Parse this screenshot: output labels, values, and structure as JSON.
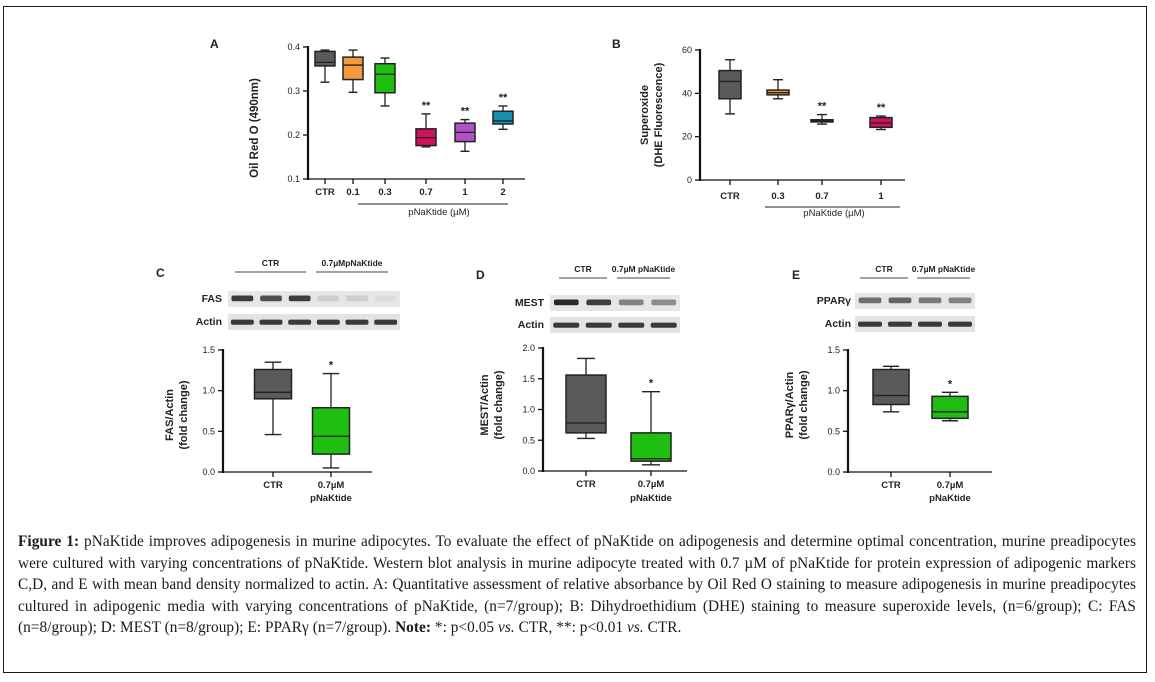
{
  "figure": {
    "caption": {
      "label": "Figure 1:",
      "text_1": " pNaKtide improves adipogenesis in murine adipocytes. To evaluate the effect of pNaKtide on adipogenesis and determine optimal concentration, murine preadipocytes were cultured with varying concentrations of pNaKtide. Western blot analysis in murine adipocyte treated with 0.7 µM of pNaKtide for protein expression of adipogenic markers C,D, and E with mean band density normalized to actin. A: Quantitative assessment of relative absorbance by Oil Red O staining to measure adipogenesis in murine preadipocytes cultured in adipogenic media with varying concentrations of pNaKtide, (n=7/group); B: Dihydroethidium (DHE) staining to measure superoxide levels, (n=6/group); C: FAS (n=8/group); D: MEST (n=8/group); E: PPARγ (n=7/group). ",
      "note_label": "Note:",
      "text_2a": " *: p<0.05 ",
      "vs_1": "vs.",
      "text_2b": " CTR, **: p<0.01 ",
      "vs_2": "vs.",
      "text_2c": " CTR."
    }
  },
  "chart_data": [
    {
      "panel": "A",
      "type": "box",
      "ylabel": "Oil Red O (490nm)",
      "xlabel": "pNaKtide (µM)",
      "ylim": [
        0.1,
        0.4
      ],
      "yticks": [
        "0.1",
        "0.2",
        "0.3",
        "0.4"
      ],
      "ytick_values": [
        0.1,
        0.2,
        0.3,
        0.4
      ],
      "categories": [
        "CTR",
        "0.1",
        "0.3",
        "0.7",
        "1",
        "2"
      ],
      "colors": [
        "#5a5a5a",
        "#f59a3c",
        "#1fbf12",
        "#d1105e",
        "#b052c8",
        "#1592b0"
      ],
      "boxes": [
        {
          "min": 0.32,
          "q1": 0.357,
          "median": 0.365,
          "q3": 0.39,
          "max": 0.393,
          "sig": ""
        },
        {
          "min": 0.297,
          "q1": 0.326,
          "median": 0.359,
          "q3": 0.377,
          "max": 0.393,
          "sig": ""
        },
        {
          "min": 0.266,
          "q1": 0.296,
          "median": 0.338,
          "q3": 0.362,
          "max": 0.375,
          "sig": ""
        },
        {
          "min": 0.173,
          "q1": 0.176,
          "median": 0.194,
          "q3": 0.214,
          "max": 0.248,
          "sig": "**"
        },
        {
          "min": 0.163,
          "q1": 0.185,
          "median": 0.206,
          "q3": 0.227,
          "max": 0.235,
          "sig": "**"
        },
        {
          "min": 0.213,
          "q1": 0.225,
          "median": 0.232,
          "q3": 0.254,
          "max": 0.266,
          "sig": "**"
        }
      ],
      "bracket_from": 1
    },
    {
      "panel": "B",
      "type": "box",
      "ylabel": "Superoxide",
      "ylabel2": "(DHE Fluorescence)",
      "xlabel": "pNaKtide (µM)",
      "ylim": [
        0,
        60
      ],
      "yticks": [
        "0",
        "20",
        "40",
        "60"
      ],
      "ytick_values": [
        0,
        20,
        40,
        60
      ],
      "categories": [
        "CTR",
        "0.3",
        "0.7",
        "1"
      ],
      "colors": [
        "#5a5a5a",
        "#f59a3c",
        "#222222",
        "#d1105e"
      ],
      "boxes": [
        {
          "min": 30.5,
          "q1": 37.5,
          "median": 45.5,
          "q3": 50.5,
          "max": 55.5,
          "sig": ""
        },
        {
          "min": 37.5,
          "q1": 39.3,
          "median": 40.3,
          "q3": 41.5,
          "max": 46.3,
          "sig": ""
        },
        {
          "min": 25.8,
          "q1": 26.8,
          "median": 27.3,
          "q3": 27.8,
          "max": 30.2,
          "sig": "**"
        },
        {
          "min": 23.3,
          "q1": 24.3,
          "median": 26.3,
          "q3": 28.8,
          "max": 29.5,
          "sig": "**"
        }
      ],
      "bracket_from": 1
    },
    {
      "panel": "C",
      "type": "box",
      "blot": {
        "protein": "FAS",
        "loading": "Actin",
        "group1": "CTR",
        "group2": "0.7µMpNaKtide",
        "lanes": 6,
        "intensity": [
          0.85,
          0.75,
          0.85,
          0.12,
          0.12,
          0.05
        ]
      },
      "ylabel": "FAS/Actin",
      "ylabel2": "(fold change)",
      "ylim": [
        0,
        1.5
      ],
      "yticks": [
        "0.0",
        "0.5",
        "1.0",
        "1.5"
      ],
      "ytick_values": [
        0,
        0.5,
        1.0,
        1.5
      ],
      "categories": [
        "CTR",
        "0.7µM"
      ],
      "category_sub": [
        "",
        "pNaKtide"
      ],
      "colors": [
        "#5a5a5a",
        "#1fbf12"
      ],
      "boxes": [
        {
          "min": 0.46,
          "q1": 0.9,
          "median": 0.98,
          "q3": 1.26,
          "max": 1.35,
          "sig": ""
        },
        {
          "min": 0.05,
          "q1": 0.22,
          "median": 0.44,
          "q3": 0.79,
          "max": 1.21,
          "sig": "*"
        }
      ]
    },
    {
      "panel": "D",
      "type": "box",
      "blot": {
        "protein": "MEST",
        "loading": "Actin",
        "group1": "CTR",
        "group2": "0.7µM pNaKtide",
        "lanes": 4,
        "intensity": [
          0.95,
          0.85,
          0.5,
          0.45
        ]
      },
      "ylabel": "MEST/Actin",
      "ylabel2": "(fold change)",
      "ylim": [
        0,
        2.0
      ],
      "yticks": [
        "0.0",
        "0.5",
        "1.0",
        "1.5",
        "2.0"
      ],
      "ytick_values": [
        0,
        0.5,
        1.0,
        1.5,
        2.0
      ],
      "categories": [
        "CTR",
        "0.7µM"
      ],
      "category_sub": [
        "",
        "pNaKtide"
      ],
      "colors": [
        "#5a5a5a",
        "#1fbf12"
      ],
      "boxes": [
        {
          "min": 0.53,
          "q1": 0.62,
          "median": 0.78,
          "q3": 1.56,
          "max": 1.83,
          "sig": ""
        },
        {
          "min": 0.1,
          "q1": 0.16,
          "median": 0.2,
          "q3": 0.62,
          "max": 1.29,
          "sig": "*"
        }
      ]
    },
    {
      "panel": "E",
      "type": "box",
      "blot": {
        "protein": "PPARγ",
        "loading": "Actin",
        "group1": "CTR",
        "group2": "0.7µM pNaKtide",
        "lanes": 4,
        "intensity": [
          0.6,
          0.65,
          0.55,
          0.5
        ]
      },
      "ylabel": "PPARγ/Actin",
      "ylabel2": "(fold change)",
      "ylim": [
        0,
        1.5
      ],
      "yticks": [
        "0.0",
        "0.5",
        "1.0",
        "1.5"
      ],
      "ytick_values": [
        0,
        0.5,
        1.0,
        1.5
      ],
      "categories": [
        "CTR",
        "0.7µM"
      ],
      "category_sub": [
        "",
        "pNaKtide"
      ],
      "colors": [
        "#5a5a5a",
        "#1fbf12"
      ],
      "boxes": [
        {
          "min": 0.74,
          "q1": 0.83,
          "median": 0.94,
          "q3": 1.26,
          "max": 1.3,
          "sig": ""
        },
        {
          "min": 0.63,
          "q1": 0.66,
          "median": 0.74,
          "q3": 0.93,
          "max": 0.98,
          "sig": "*"
        }
      ]
    }
  ]
}
